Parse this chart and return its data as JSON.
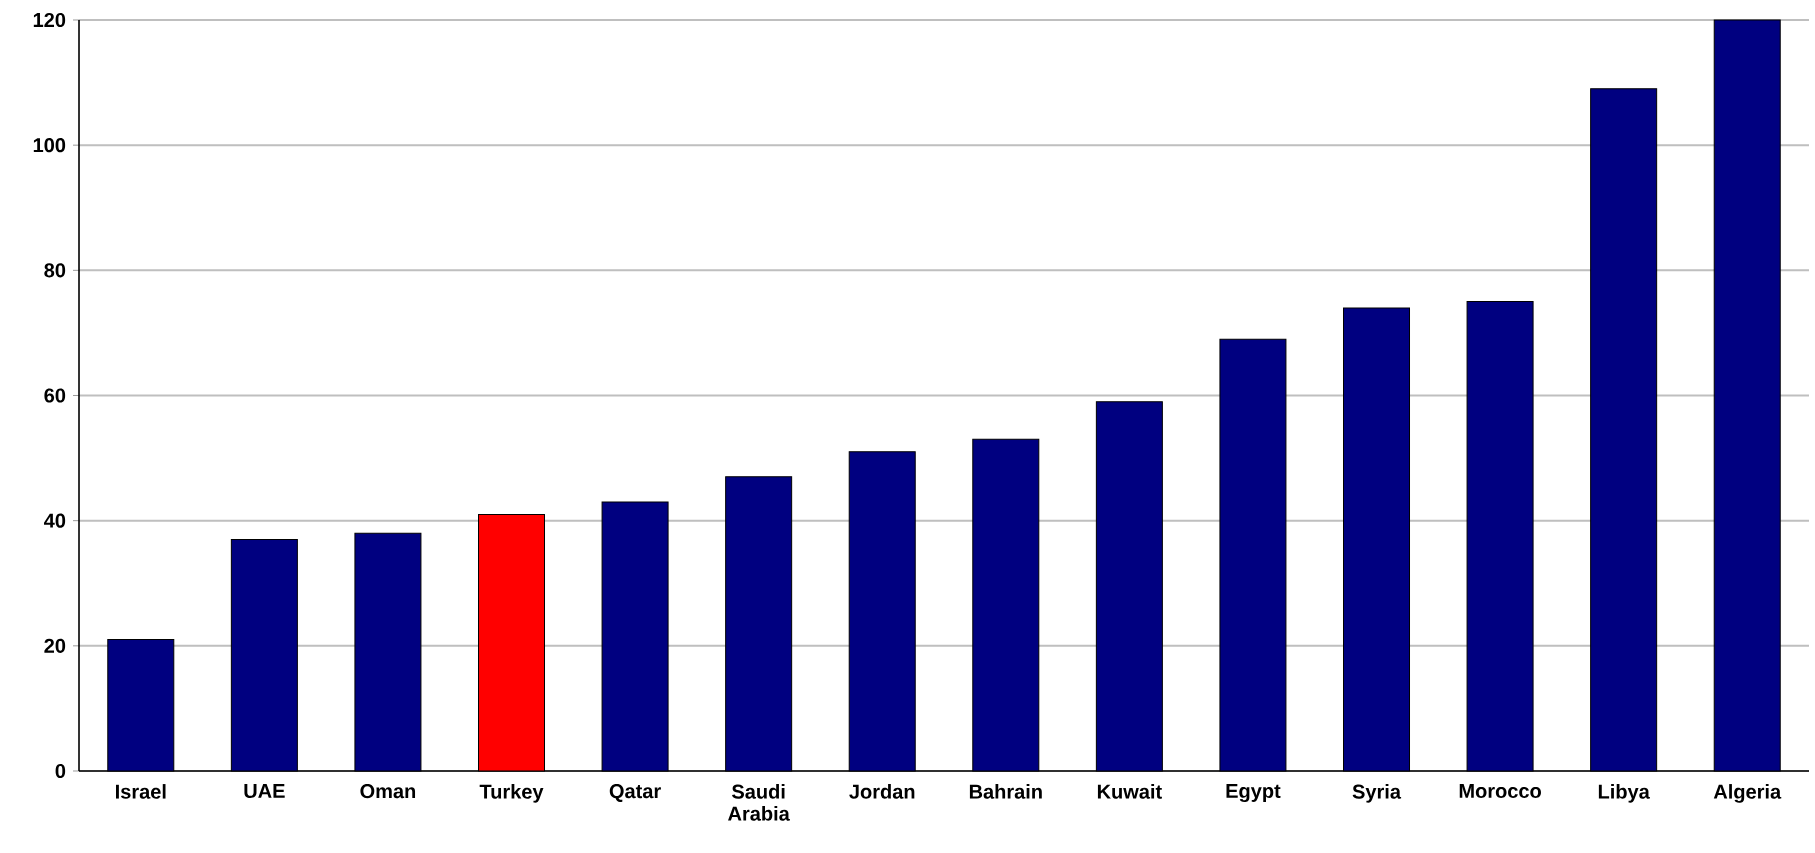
{
  "chart_data": {
    "type": "bar",
    "categories": [
      "Israel",
      "UAE",
      "Oman",
      "Turkey",
      "Qatar",
      "Saudi Arabia",
      "Jordan",
      "Bahrain",
      "Kuwait",
      "Egypt",
      "Syria",
      "Morocco",
      "Libya",
      "Algeria"
    ],
    "values": [
      21,
      37,
      38,
      41,
      43,
      47,
      51,
      53,
      59,
      69,
      74,
      75,
      109,
      120
    ],
    "colors": [
      "#000080",
      "#000080",
      "#000080",
      "#ff0000",
      "#000080",
      "#000080",
      "#000080",
      "#000080",
      "#000080",
      "#000080",
      "#000080",
      "#000080",
      "#000080",
      "#000080"
    ],
    "ylim": [
      0,
      120
    ],
    "yticks": [
      0,
      20,
      40,
      60,
      80,
      100,
      120
    ],
    "grid": "y"
  }
}
